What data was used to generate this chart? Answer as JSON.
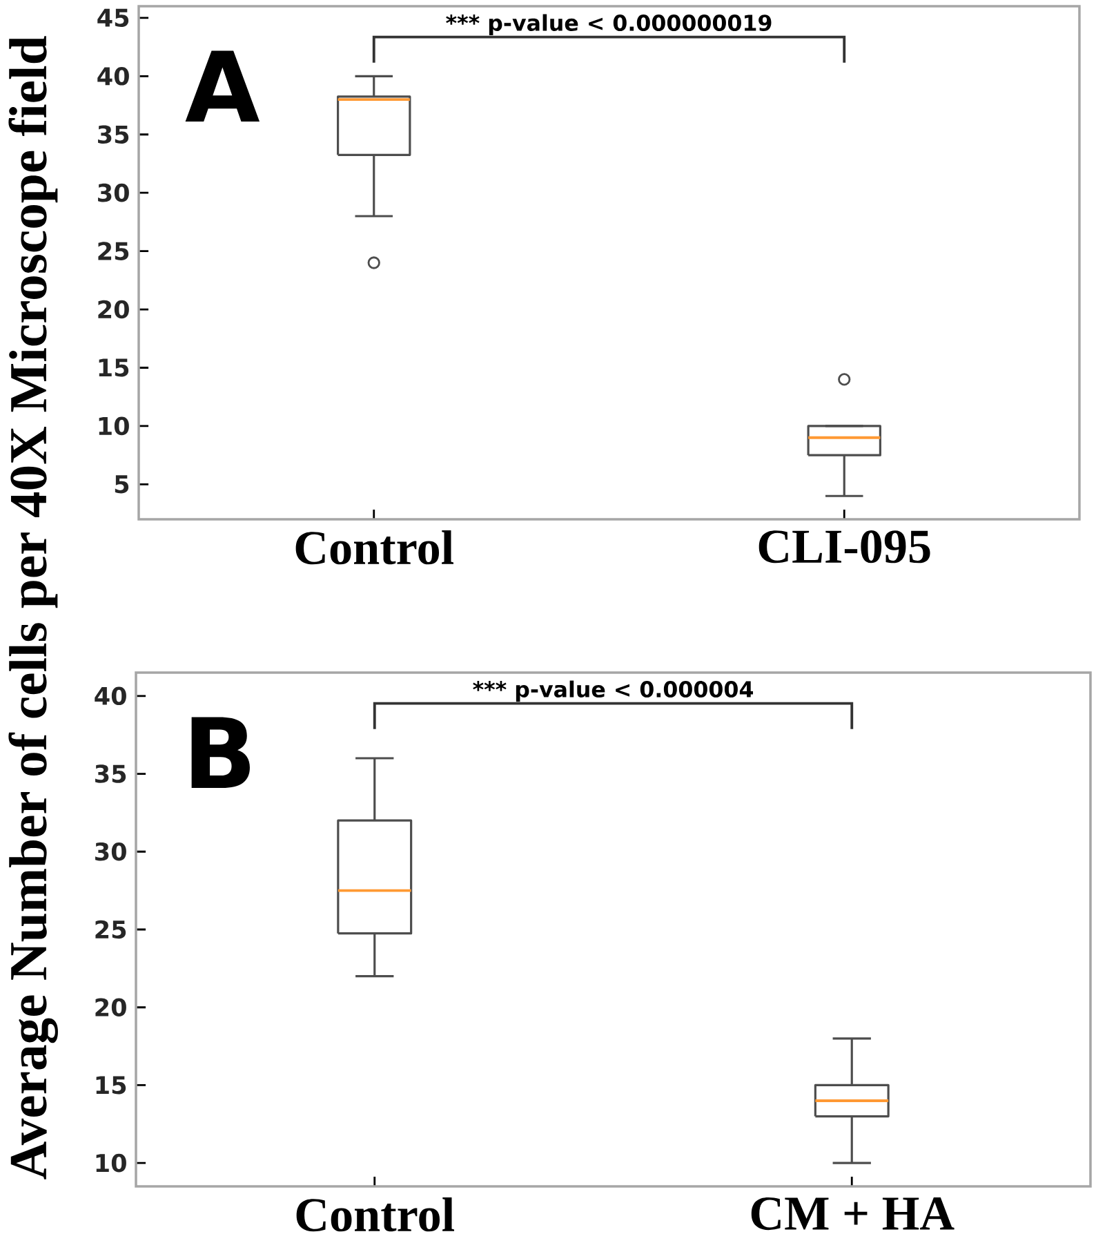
{
  "chart_data": [
    {
      "type": "box",
      "ylabel": "Average Number of cells per 40X Microscope field",
      "categories": [
        "Control",
        "CLI-095"
      ],
      "color": "#4d4d4d",
      "boxes": [
        {
          "low": 28,
          "q1": 33.25,
          "median": 38,
          "q3": 38.25,
          "high": 40,
          "outliers": [
            24
          ]
        },
        {
          "low": 4,
          "q1": 7.5,
          "median": 9,
          "q3": 10,
          "high": 10,
          "outliers": [
            14
          ]
        }
      ],
      "ylim": [
        2,
        46
      ],
      "yticks": [
        5,
        10,
        15,
        20,
        25,
        30,
        35,
        40,
        45
      ],
      "grid": false,
      "annotations": [
        "A",
        "*** p-value < 0.000000019"
      ]
    },
    {
      "type": "box",
      "categories": [
        "Control",
        "CM + HA"
      ],
      "color": "#4d4d4d",
      "boxes": [
        {
          "low": 22,
          "q1": 24.75,
          "median": 27.5,
          "q3": 32,
          "high": 36
        },
        {
          "low": 10,
          "q1": 13,
          "median": 14,
          "q3": 15,
          "high": 18
        }
      ],
      "ylim": [
        8.5,
        41.5
      ],
      "yticks": [
        10,
        15,
        20,
        25,
        30,
        35,
        40
      ],
      "grid": false,
      "annotations": [
        "B",
        "*** p-value < 0.000004"
      ]
    }
  ]
}
